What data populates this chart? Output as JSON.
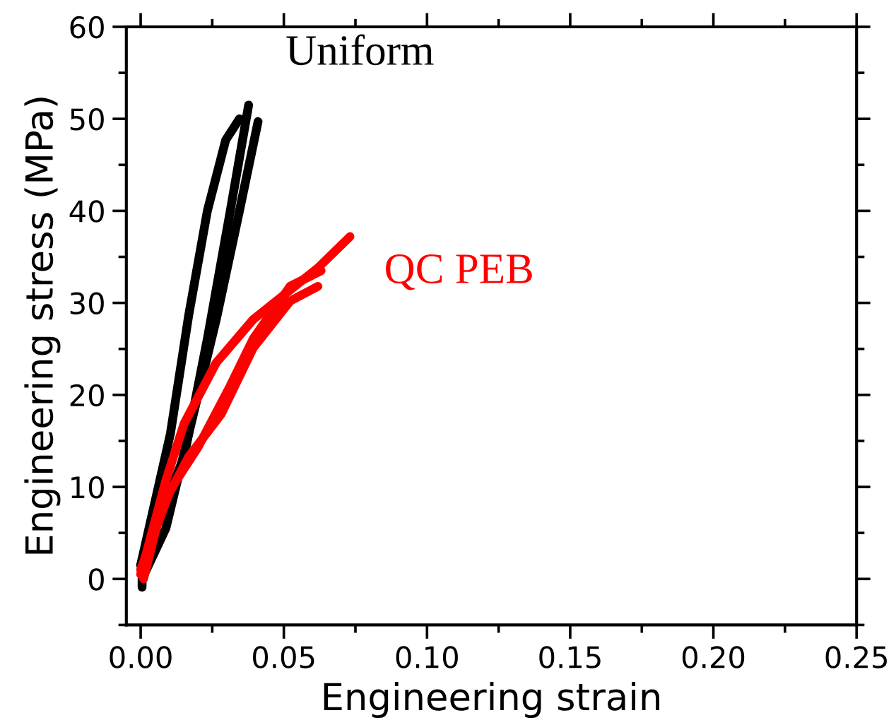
{
  "chart_data": {
    "type": "line",
    "xlabel": "Engineering strain",
    "ylabel": "Engineering stress (MPa)",
    "xlim": [
      -0.005,
      0.25
    ],
    "ylim": [
      -5,
      60
    ],
    "xticks": [
      {
        "value": 0,
        "label": "0.00"
      },
      0.05,
      {
        "value": 0.1,
        "label": "0.10"
      },
      0.15,
      {
        "value": 0.2,
        "label": "0.20"
      },
      0.25
    ],
    "yticks": [
      0,
      10,
      20,
      30,
      40,
      50,
      60
    ],
    "grid": false,
    "marker": "none",
    "line_style": "solid",
    "annotations": [
      "Uniform",
      "QC PEB"
    ],
    "series": [
      {
        "color": "#000000",
        "x": [
          0,
          0.0104,
          0.0168,
          0.0233,
          0.0297,
          0.0345
        ],
        "values": [
          1.5,
          15.8,
          28.7,
          40,
          47.7,
          50
        ]
      },
      {
        "color": "#000000",
        "x": [
          0,
          0.0152,
          0.0233,
          0.0313,
          0.0377
        ],
        "values": [
          1.5,
          13.3,
          26.1,
          40,
          51.5
        ]
      },
      {
        "color": "#000000",
        "x": [
          0.0005,
          0.0005,
          0.0088,
          0.0168,
          0.0264,
          0.0345,
          0.041
        ],
        "values": [
          -0.9,
          0,
          5.5,
          15.8,
          28.2,
          40,
          49.7
        ]
      },
      {
        "color": "#ff0000",
        "x": [
          0,
          0.0088,
          0.0152,
          0.0264,
          0.0393,
          0.0619,
          0.0731
        ],
        "values": [
          0.5,
          10.7,
          16.9,
          23.5,
          28.2,
          33.8,
          37.2
        ]
      },
      {
        "color": "#ff0000",
        "x": [
          0.001,
          0.0071,
          0.0168,
          0.0281,
          0.0393,
          0.0522,
          0.0619
        ],
        "values": [
          0,
          7.6,
          13.3,
          17.9,
          25.1,
          30.2,
          31.8
        ]
      },
      {
        "color": "#ff0000",
        "x": [
          0,
          0.0104,
          0.02,
          0.0313,
          0.0393,
          0.0522,
          0.063
        ],
        "values": [
          1,
          9.7,
          14.3,
          21,
          26.1,
          31.8,
          33.5
        ]
      }
    ]
  }
}
